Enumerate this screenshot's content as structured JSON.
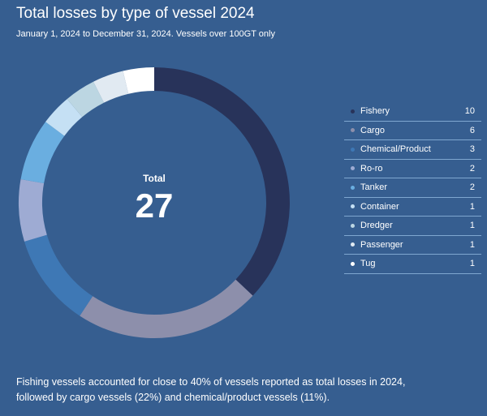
{
  "header": {
    "title": "Total losses by type of vessel 2024",
    "subtitle": "January 1, 2024 to December 31, 2024. Vessels over 100GT only"
  },
  "center": {
    "label": "Total",
    "value": "27"
  },
  "caption": {
    "line1": "Fishing vessels accounted for close to 40% of vessels reported as total losses in 2024,",
    "line2": "followed by cargo vessels (22%) and chemical/product vessels (11%)."
  },
  "chart_data": {
    "type": "pie",
    "subtype": "donut",
    "title": "Total losses by type of vessel 2024",
    "subtitle": "January 1, 2024 to December 31, 2024. Vessels over 100GT only",
    "total": 27,
    "legend_position": "right",
    "categories": [
      "Fishery",
      "Cargo",
      "Chemical/Product",
      "Ro-ro",
      "Tanker",
      "Container",
      "Dredger",
      "Passenger",
      "Tug"
    ],
    "values": [
      10,
      6,
      3,
      2,
      2,
      1,
      1,
      1,
      1
    ],
    "colors": [
      "#28335a",
      "#8d8fab",
      "#3e78b5",
      "#9eabd3",
      "#6aaee0",
      "#c5e0f4",
      "#bcd6e2",
      "#e1eaf2",
      "#ffffff"
    ]
  }
}
